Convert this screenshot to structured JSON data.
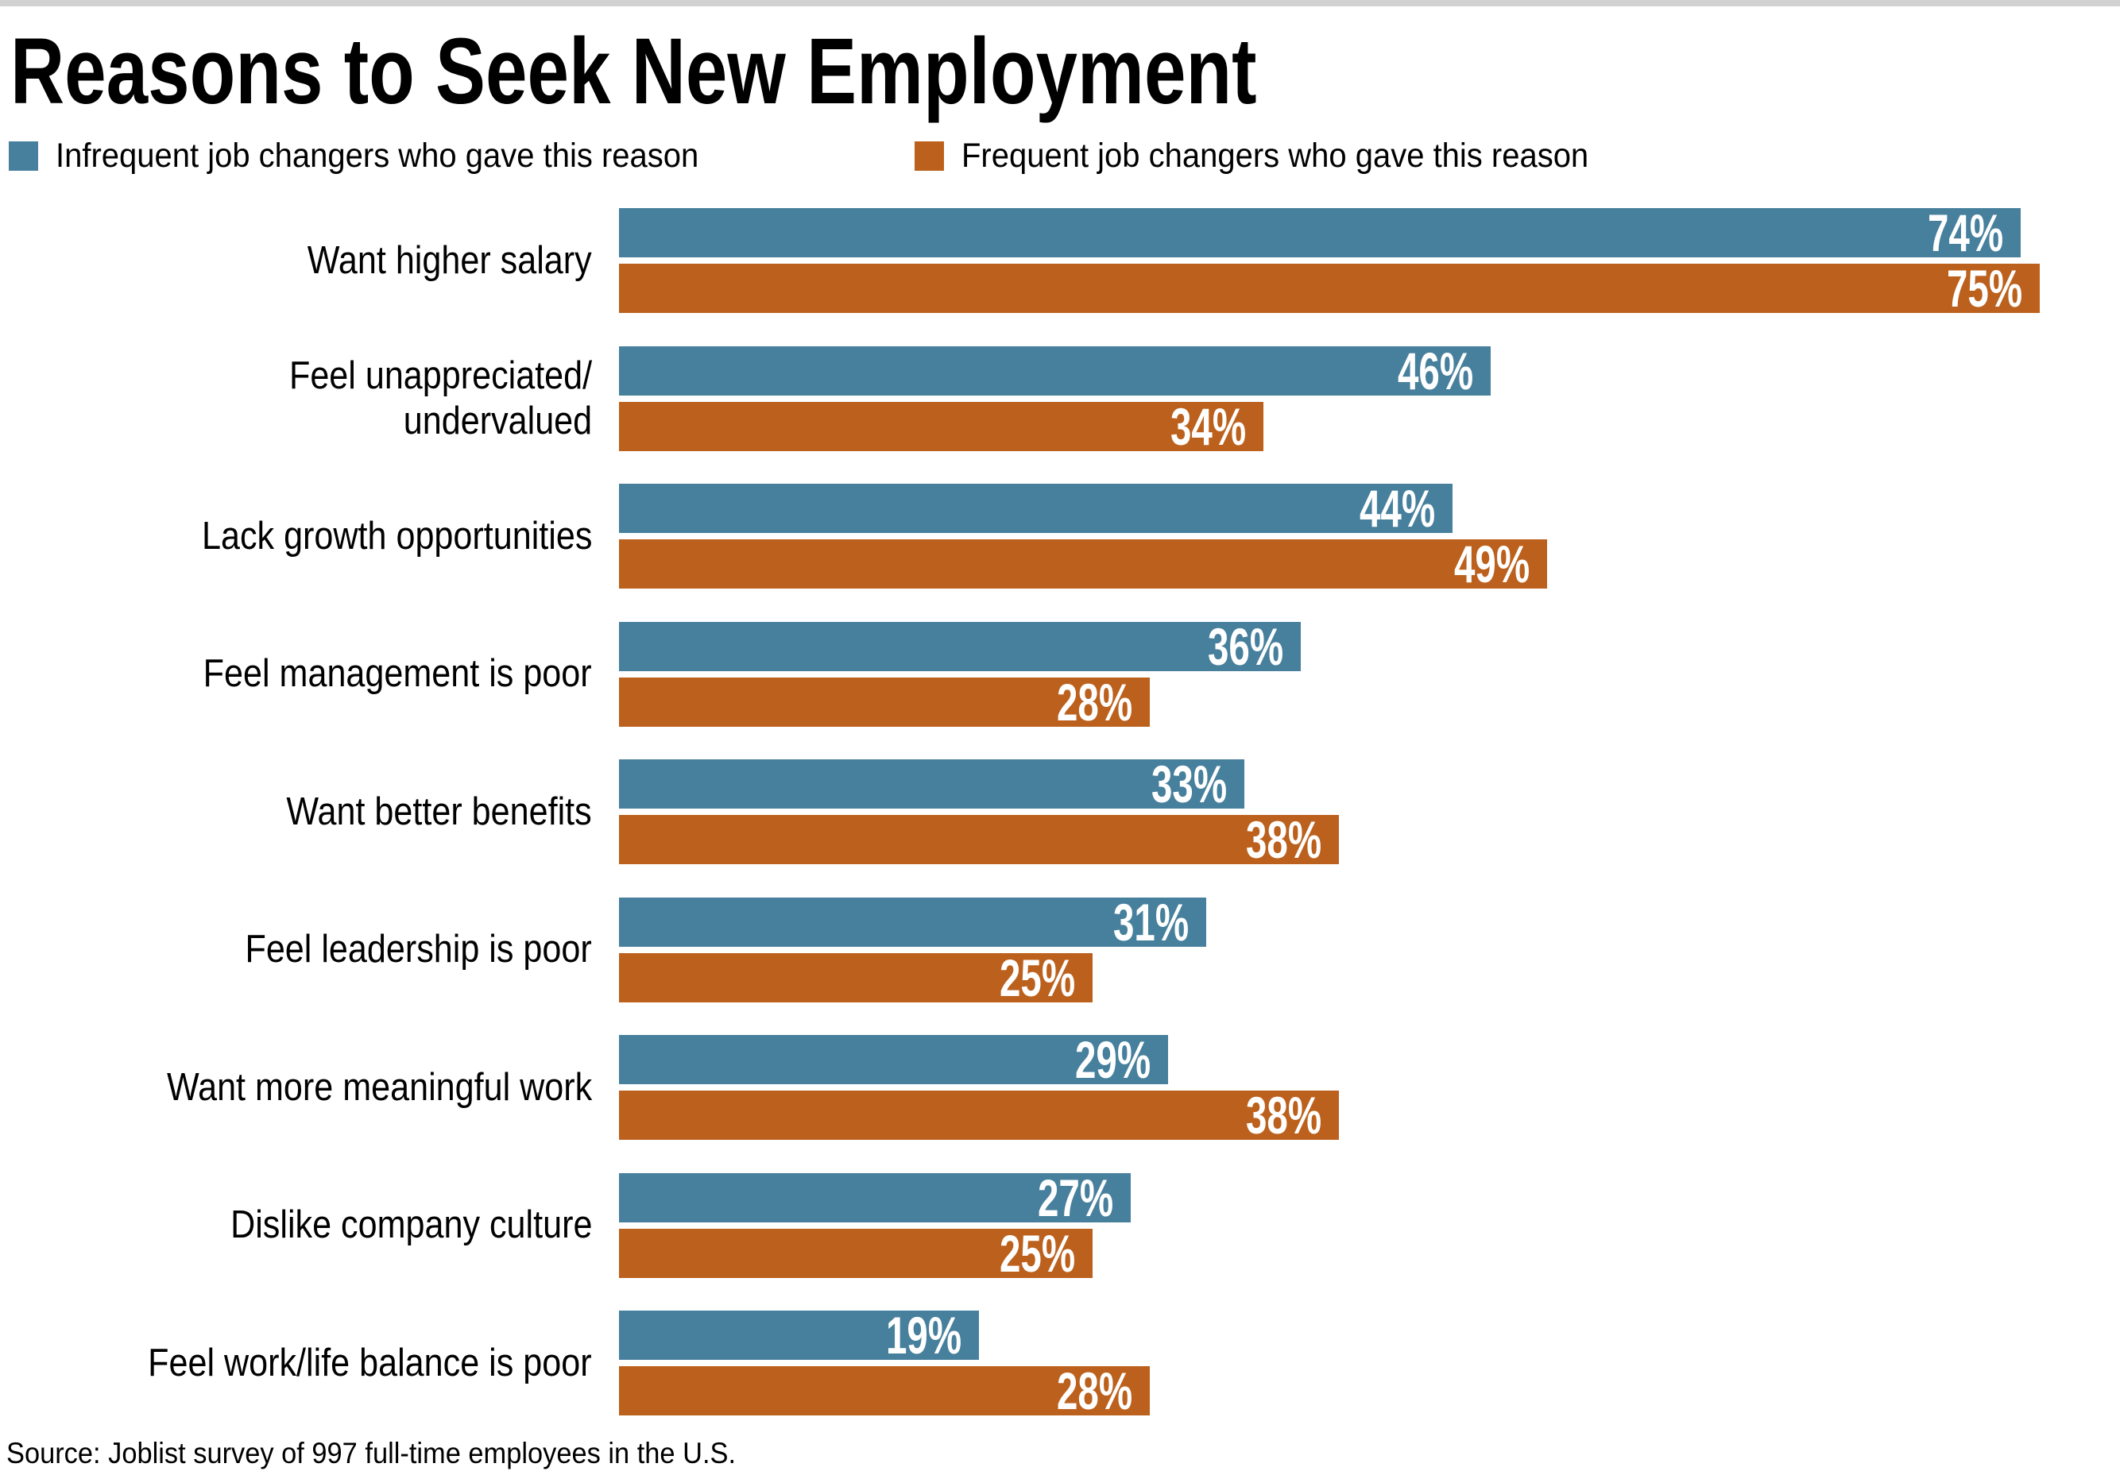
{
  "title": "Reasons to Seek New Employment",
  "source": "Source: Joblist survey of 997 full-time employees in the U.S.",
  "colors": {
    "infrequent_blue": "#47809D",
    "frequent_orange": "#BC611D",
    "top_strip_gray": "#D1D1D1",
    "value_label_white": "#FFFFFF",
    "text_black": "#000000"
  },
  "legend": [
    {
      "label": "Infrequent job changers who gave this reason",
      "color": "#47809D"
    },
    {
      "label": "Frequent job changers who gave this reason",
      "color": "#BC611D"
    }
  ],
  "chart_data": {
    "type": "bar",
    "orientation": "horizontal",
    "title": "Reasons to Seek New Employment",
    "categories": [
      "Want higher salary",
      "Feel unappreciated/\nundervalued",
      "Lack growth opportunities",
      "Feel management is poor",
      "Want better benefits",
      "Feel leadership is poor",
      "Want more meaningful work",
      "Dislike company culture",
      "Feel work/life balance is poor"
    ],
    "series": [
      {
        "name": "Infrequent job changers who gave this reason",
        "color": "#47809D",
        "values": [
          74,
          46,
          44,
          36,
          33,
          31,
          29,
          27,
          19
        ]
      },
      {
        "name": "Frequent job changers who gave this reason",
        "color": "#BC611D",
        "values": [
          75,
          34,
          49,
          28,
          38,
          25,
          38,
          25,
          28
        ]
      }
    ],
    "value_suffix": "%",
    "value_labels": "inside-end",
    "xlim": [
      0,
      79
    ],
    "grid": false,
    "legend_position": "top"
  }
}
